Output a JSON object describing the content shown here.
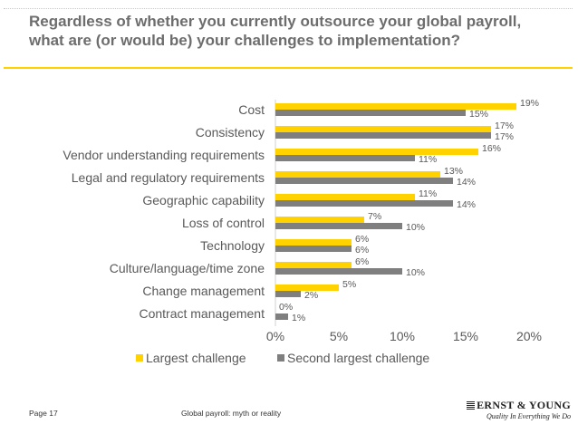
{
  "title": "Regardless of whether you currently outsource your global payroll, what are (or would be) your challenges to implementation?",
  "footer": {
    "page": "Page 17",
    "doc": "Global payroll: myth or reality"
  },
  "logo": {
    "name": "ERNST & YOUNG",
    "tagline": "Quality In Everything We Do"
  },
  "colors": {
    "series1": "#ffd200",
    "series2": "#7f7f7f",
    "title": "#6d6d6d",
    "rule": "#ffd200"
  },
  "chart_data": {
    "type": "bar",
    "orientation": "horizontal",
    "categories": [
      "Cost",
      "Consistency",
      "Vendor understanding requirements",
      "Legal and regulatory requirements",
      "Geographic capability",
      "Loss of control",
      "Technology",
      "Culture/language/time zone",
      "Change management",
      "Contract management"
    ],
    "series": [
      {
        "name": "Largest challenge",
        "values": [
          19,
          17,
          16,
          13,
          11,
          7,
          6,
          6,
          5,
          0
        ]
      },
      {
        "name": "Second largest challenge",
        "values": [
          15,
          17,
          11,
          14,
          14,
          10,
          6,
          10,
          2,
          1
        ]
      }
    ],
    "xlim": [
      0,
      20
    ],
    "xticks": [
      "0%",
      "5%",
      "10%",
      "15%",
      "20%"
    ],
    "value_suffix": "%",
    "legend_position": "bottom",
    "grid": false
  }
}
